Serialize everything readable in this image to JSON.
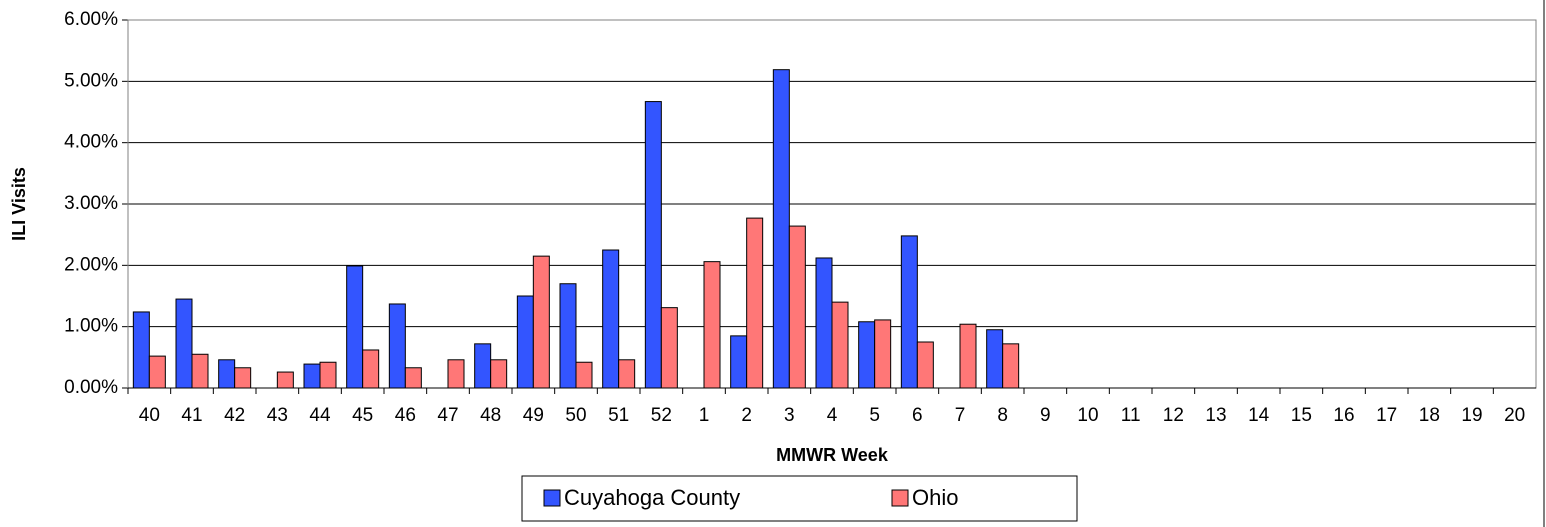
{
  "chart_data": {
    "type": "bar",
    "x_label": "MMWR Week",
    "y_label": "ILI Visits",
    "categories": [
      "40",
      "41",
      "42",
      "43",
      "44",
      "45",
      "46",
      "47",
      "48",
      "49",
      "50",
      "51",
      "52",
      "1",
      "2",
      "3",
      "4",
      "5",
      "6",
      "7",
      "8",
      "9",
      "10",
      "11",
      "12",
      "13",
      "14",
      "15",
      "16",
      "17",
      "18",
      "19",
      "20"
    ],
    "series": [
      {
        "name": "Cuyahoga County",
        "color": "#3355ff",
        "values": [
          1.24,
          1.45,
          0.46,
          null,
          0.39,
          1.99,
          1.37,
          null,
          0.72,
          1.5,
          1.7,
          2.25,
          4.67,
          null,
          0.85,
          5.19,
          2.12,
          1.08,
          2.48,
          null,
          0.95,
          null,
          null,
          null,
          null,
          null,
          null,
          null,
          null,
          null,
          null,
          null,
          null
        ]
      },
      {
        "name": "Ohio",
        "color": "#ff7777",
        "values": [
          0.52,
          0.55,
          0.33,
          0.26,
          0.42,
          0.62,
          0.33,
          0.46,
          0.46,
          2.15,
          0.42,
          0.46,
          1.31,
          2.06,
          2.77,
          2.64,
          1.4,
          1.11,
          0.75,
          1.04,
          0.72,
          null,
          null,
          null,
          null,
          null,
          null,
          null,
          null,
          null,
          null,
          null,
          null
        ]
      }
    ],
    "ylim": [
      0,
      6
    ],
    "yticks": [
      {
        "value": 0,
        "label": "0.00%"
      },
      {
        "value": 1,
        "label": "1.00%"
      },
      {
        "value": 2,
        "label": "2.00%"
      },
      {
        "value": 3,
        "label": "3.00%"
      },
      {
        "value": 4,
        "label": "4.00%"
      },
      {
        "value": 5,
        "label": "5.00%"
      },
      {
        "value": 6,
        "label": "6.00%"
      }
    ],
    "grid": true,
    "legend": "bottom"
  }
}
